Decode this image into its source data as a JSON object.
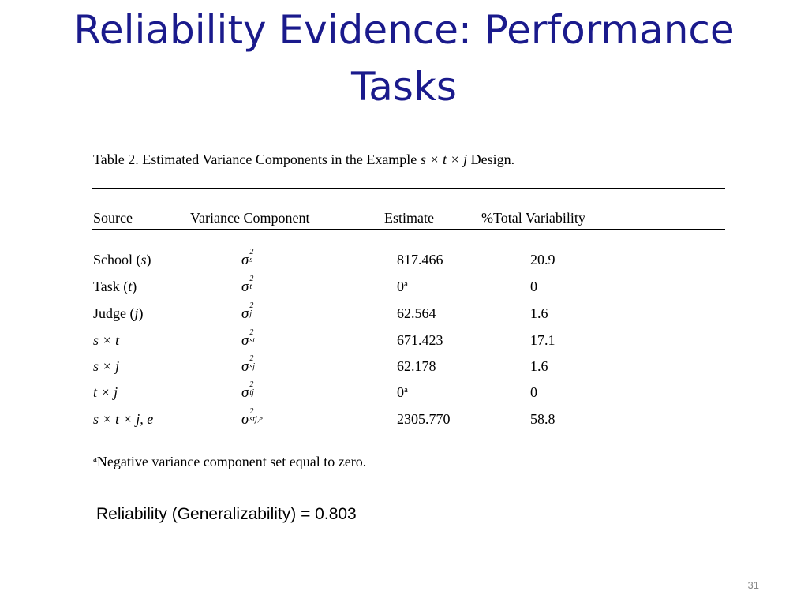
{
  "slide": {
    "title_line1": "Reliability Evidence: Performance",
    "title_line2": "Tasks",
    "page_number": "31"
  },
  "table": {
    "caption_prefix": "Table 2. Estimated Variance Components in the Example ",
    "caption_design": "s × t × j",
    "caption_suffix": " Design.",
    "headers": {
      "source": "Source",
      "variance_component": "Variance Component",
      "estimate": "Estimate",
      "total_variability": "%Total Variability"
    },
    "rows": [
      {
        "source_text": "School (",
        "source_italic": "s",
        "source_close": ")",
        "symbol": "σ",
        "sup": "2",
        "sub": "s",
        "estimate": "817.466",
        "estimate_note": "",
        "percent": "20.9"
      },
      {
        "source_text": "Task (",
        "source_italic": "t",
        "source_close": ")",
        "symbol": "σ",
        "sup": "2",
        "sub": "t",
        "estimate": "0",
        "estimate_note": "a",
        "percent": "0"
      },
      {
        "source_text": "Judge (",
        "source_italic": "j",
        "source_close": ")",
        "symbol": "σ",
        "sup": "2",
        "sub": "j",
        "estimate": "62.564",
        "estimate_note": "",
        "percent": "1.6"
      },
      {
        "source_text": "",
        "source_italic": "s × t",
        "source_close": "",
        "symbol": "σ",
        "sup": "2",
        "sub": "st",
        "estimate": "671.423",
        "estimate_note": "",
        "percent": "17.1"
      },
      {
        "source_text": "",
        "source_italic": "s × j",
        "source_close": "",
        "symbol": "σ",
        "sup": "2",
        "sub": "sj",
        "estimate": "62.178",
        "estimate_note": "",
        "percent": "1.6"
      },
      {
        "source_text": "",
        "source_italic": "t × j",
        "source_close": "",
        "symbol": "σ",
        "sup": "2",
        "sub": "tj",
        "estimate": "0",
        "estimate_note": "a",
        "percent": "0"
      },
      {
        "source_text": "",
        "source_italic": "s × t × j, e",
        "source_close": "",
        "symbol": "σ",
        "sup": "2",
        "sub": "stj,e",
        "estimate": "2305.770",
        "estimate_note": "",
        "percent": "58.8"
      }
    ],
    "footnote_mark": "a",
    "footnote_text": "Negative variance component set equal to zero."
  },
  "result": {
    "text": "Reliability (Generalizability) = 0.803"
  }
}
